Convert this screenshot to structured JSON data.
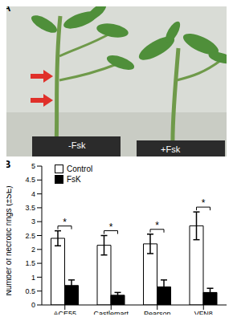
{
  "panel_a": {
    "label": "A",
    "texts": [
      "-Fsk",
      "+Fsk"
    ]
  },
  "chart_data": {
    "type": "bar",
    "title": "B",
    "y_label": "Number of necrotic rings (±SE)",
    "categories": [
      "ACE55",
      "Castlemart",
      "Pearson",
      "VFN8"
    ],
    "series": [
      {
        "name": "Control",
        "color": "#ffffff",
        "values": [
          2.4,
          2.15,
          2.2,
          2.85
        ],
        "errors": [
          0.27,
          0.35,
          0.35,
          0.5
        ]
      },
      {
        "name": "FsK",
        "color": "#000000",
        "values": [
          0.7,
          0.35,
          0.65,
          0.45
        ],
        "errors": [
          0.2,
          0.1,
          0.25,
          0.15
        ]
      }
    ],
    "annotations": [
      "*",
      "*",
      "*",
      "*"
    ],
    "ylim": [
      0,
      5
    ],
    "yticks": [
      0,
      0.5,
      1,
      1.5,
      2,
      2.5,
      3,
      3.5,
      4,
      4.5,
      5
    ],
    "grid": false,
    "legend": "upper left"
  }
}
